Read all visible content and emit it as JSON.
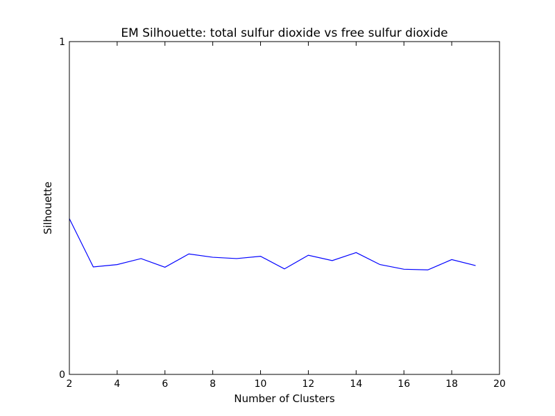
{
  "chart_data": {
    "type": "line",
    "title": "EM Silhouette: total sulfur dioxide vs free sulfur dioxide",
    "xlabel": "Number of Clusters",
    "ylabel": "Silhouette",
    "xlim": [
      2,
      20
    ],
    "ylim": [
      0,
      1
    ],
    "xticks": [
      2,
      4,
      6,
      8,
      10,
      12,
      14,
      16,
      18,
      20
    ],
    "yticks": [
      0,
      1
    ],
    "xtick_labels": [
      "2",
      "4",
      "6",
      "8",
      "10",
      "12",
      "14",
      "16",
      "18",
      "20"
    ],
    "ytick_labels": [
      "0",
      "1"
    ],
    "grid": false,
    "series": [
      {
        "color": "#0000ff",
        "x": [
          2,
          3,
          4,
          5,
          6,
          7,
          8,
          9,
          10,
          11,
          12,
          13,
          14,
          15,
          16,
          17,
          18,
          19
        ],
        "y": [
          0.468,
          0.323,
          0.33,
          0.348,
          0.322,
          0.362,
          0.352,
          0.348,
          0.355,
          0.317,
          0.358,
          0.342,
          0.366,
          0.33,
          0.316,
          0.314,
          0.345,
          0.327
        ]
      }
    ]
  }
}
